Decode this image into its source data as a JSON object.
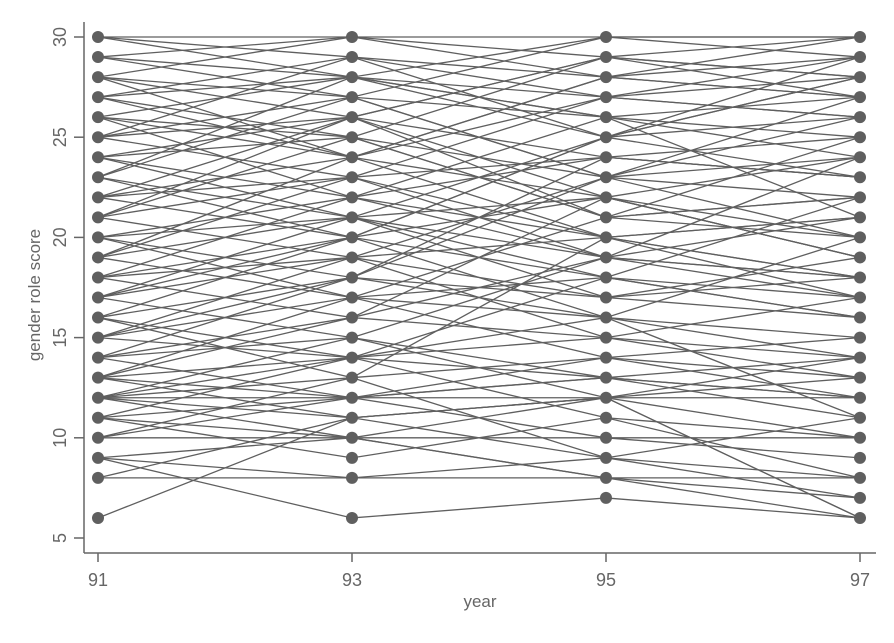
{
  "chart_data": {
    "type": "line",
    "title": "",
    "xlabel": "year",
    "ylabel": "gender role score",
    "x": [
      91,
      93,
      95,
      97
    ],
    "xticks": [
      "91",
      "93",
      "95",
      "97"
    ],
    "yticks": [
      "5",
      "10",
      "15",
      "20",
      "25",
      "30"
    ],
    "ylim": [
      5,
      30
    ],
    "xlim": [
      91,
      97
    ],
    "grid": false,
    "markers": "filled-circle",
    "color": "#5f5f5f",
    "trajectories": [
      [
        9,
        6,
        7,
        6
      ],
      [
        6,
        11,
        12,
        10
      ],
      [
        8,
        8,
        8,
        8
      ],
      [
        10,
        10,
        10,
        10
      ],
      [
        30,
        30,
        30,
        30
      ],
      [
        9,
        8,
        9,
        7
      ],
      [
        8,
        11,
        12,
        6
      ],
      [
        9,
        10,
        8,
        6
      ],
      [
        11,
        9,
        11,
        8
      ],
      [
        12,
        12,
        12,
        12
      ],
      [
        10,
        13,
        9,
        11
      ],
      [
        13,
        14,
        15,
        13
      ],
      [
        14,
        16,
        15,
        17
      ],
      [
        15,
        14,
        18,
        16
      ],
      [
        16,
        18,
        17,
        19
      ],
      [
        17,
        15,
        19,
        18
      ],
      [
        18,
        20,
        16,
        20
      ],
      [
        19,
        17,
        21,
        22
      ],
      [
        20,
        22,
        20,
        21
      ],
      [
        21,
        19,
        23,
        20
      ],
      [
        22,
        24,
        22,
        24
      ],
      [
        23,
        21,
        25,
        23
      ],
      [
        24,
        26,
        24,
        25
      ],
      [
        25,
        23,
        27,
        26
      ],
      [
        26,
        28,
        26,
        27
      ],
      [
        27,
        25,
        29,
        28
      ],
      [
        28,
        30,
        28,
        29
      ],
      [
        29,
        27,
        30,
        30
      ],
      [
        12,
        15,
        13,
        14
      ],
      [
        13,
        17,
        16,
        15
      ],
      [
        14,
        12,
        14,
        12
      ],
      [
        15,
        19,
        17,
        18
      ],
      [
        16,
        13,
        20,
        17
      ],
      [
        17,
        21,
        18,
        16
      ],
      [
        18,
        16,
        22,
        19
      ],
      [
        19,
        23,
        19,
        21
      ],
      [
        20,
        18,
        24,
        23
      ],
      [
        21,
        25,
        21,
        22
      ],
      [
        22,
        20,
        25,
        26
      ],
      [
        23,
        27,
        23,
        24
      ],
      [
        24,
        22,
        26,
        25
      ],
      [
        25,
        29,
        25,
        28
      ],
      [
        26,
        24,
        28,
        27
      ],
      [
        27,
        29,
        27,
        26
      ],
      [
        28,
        26,
        29,
        30
      ],
      [
        29,
        28,
        27,
        29
      ],
      [
        11,
        12,
        10,
        9
      ],
      [
        12,
        14,
        11,
        10
      ],
      [
        12,
        13,
        14,
        15
      ],
      [
        13,
        12,
        13,
        11
      ],
      [
        14,
        18,
        16,
        14
      ],
      [
        15,
        17,
        14,
        13
      ],
      [
        16,
        20,
        18,
        17
      ],
      [
        17,
        19,
        20,
        21
      ],
      [
        18,
        22,
        19,
        18
      ],
      [
        19,
        21,
        22,
        20
      ],
      [
        20,
        17,
        18,
        22
      ],
      [
        21,
        23,
        24,
        23
      ],
      [
        22,
        26,
        21,
        25
      ],
      [
        23,
        20,
        22,
        19
      ],
      [
        24,
        25,
        23,
        27
      ],
      [
        25,
        27,
        26,
        24
      ],
      [
        26,
        22,
        24,
        23
      ],
      [
        27,
        28,
        25,
        29
      ],
      [
        28,
        24,
        27,
        28
      ],
      [
        30,
        29,
        28,
        27
      ],
      [
        29,
        30,
        29,
        28
      ],
      [
        14,
        15,
        12,
        13
      ],
      [
        16,
        14,
        13,
        12
      ],
      [
        18,
        19,
        15,
        14
      ],
      [
        20,
        21,
        17,
        16
      ],
      [
        22,
        23,
        20,
        18
      ],
      [
        24,
        21,
        19,
        17
      ],
      [
        26,
        25,
        21,
        20
      ],
      [
        28,
        27,
        23,
        22
      ],
      [
        13,
        16,
        19,
        24
      ],
      [
        15,
        18,
        23,
        26
      ],
      [
        17,
        20,
        25,
        28
      ],
      [
        19,
        24,
        28,
        30
      ],
      [
        21,
        26,
        29,
        27
      ],
      [
        23,
        28,
        26,
        21
      ],
      [
        25,
        26,
        22,
        19
      ],
      [
        27,
        24,
        20,
        18
      ],
      [
        12,
        11,
        12,
        14
      ],
      [
        10,
        12,
        13,
        12
      ],
      [
        11,
        14,
        16,
        11
      ],
      [
        30,
        28,
        30,
        29
      ],
      [
        12,
        10,
        8,
        7
      ],
      [
        13,
        11,
        9,
        8
      ],
      [
        11,
        10,
        12,
        6
      ]
    ]
  }
}
